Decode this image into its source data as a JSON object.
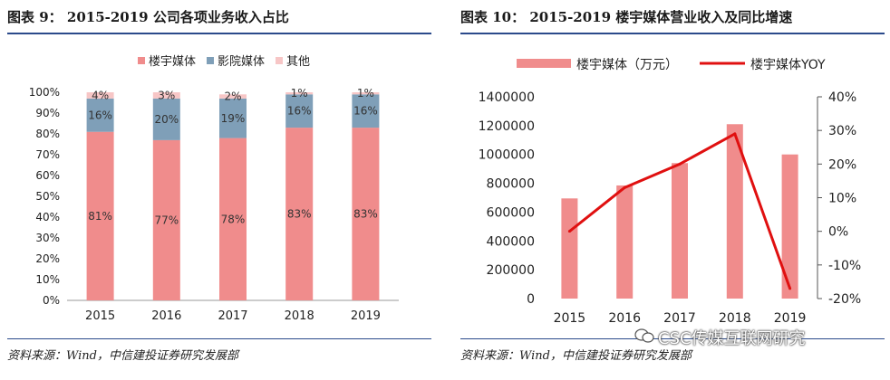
{
  "left": {
    "title": "图表 9：  2015-2019 公司各项业务收入占比",
    "source": "资料来源：Wind，中信建投证券研究发展部"
  },
  "right": {
    "title": "图表 10：  2015-2019 楼宇媒体营业收入及同比增速",
    "source": "资料来源：Wind，中信建投证券研究发展部"
  },
  "watermark": "CSC传媒互联网研究",
  "colors": {
    "pink": "#f08c8c",
    "blue": "#7f9fb8",
    "lightpink": "#f7c6c6",
    "red": "#e01010",
    "rule": "#2b4a8b"
  },
  "chart_data": [
    {
      "type": "bar",
      "stacked": true,
      "title": "2015-2019 公司各项业务收入占比",
      "categories": [
        "2015",
        "2016",
        "2017",
        "2018",
        "2019"
      ],
      "series": [
        {
          "name": "楼宇媒体",
          "color": "#f08c8c",
          "values": [
            81,
            77,
            78,
            83,
            83
          ],
          "labels": [
            "81%",
            "77%",
            "78%",
            "83%",
            "83%"
          ]
        },
        {
          "name": "影院媒体",
          "color": "#7f9fb8",
          "values": [
            16,
            20,
            19,
            16,
            16
          ],
          "labels": [
            "16%",
            "20%",
            "19%",
            "16%",
            "16%"
          ]
        },
        {
          "name": "其他",
          "color": "#f7c6c6",
          "values": [
            4,
            3,
            2,
            1,
            1
          ],
          "labels": [
            "4%",
            "3%",
            "2%",
            "1%",
            "1%"
          ]
        }
      ],
      "ylim": [
        0,
        100
      ],
      "yticks": [
        "0%",
        "10%",
        "20%",
        "30%",
        "40%",
        "50%",
        "60%",
        "70%",
        "80%",
        "90%",
        "100%"
      ],
      "legend_position": "top-center"
    },
    {
      "type": "bar",
      "title": "2015-2019 楼宇媒体营业收入及同比增速",
      "categories": [
        "2015",
        "2016",
        "2017",
        "2018",
        "2019"
      ],
      "series": [
        {
          "name": "楼宇媒体（万元）",
          "kind": "bar",
          "axis": "left",
          "color": "#f08c8c",
          "values": [
            695000,
            785000,
            940000,
            1210000,
            1000000
          ]
        },
        {
          "name": "楼宇媒体YOY",
          "kind": "line",
          "axis": "right",
          "color": "#e01010",
          "values": [
            0,
            13,
            20,
            29,
            -17
          ]
        }
      ],
      "ylim": [
        0,
        1400000
      ],
      "yticks": [
        "0",
        "200000",
        "400000",
        "600000",
        "800000",
        "1000000",
        "1200000",
        "1400000"
      ],
      "y2lim": [
        -20,
        40
      ],
      "y2ticks": [
        "-20%",
        "-10%",
        "0%",
        "10%",
        "20%",
        "30%",
        "40%"
      ],
      "legend_position": "top-center"
    }
  ]
}
